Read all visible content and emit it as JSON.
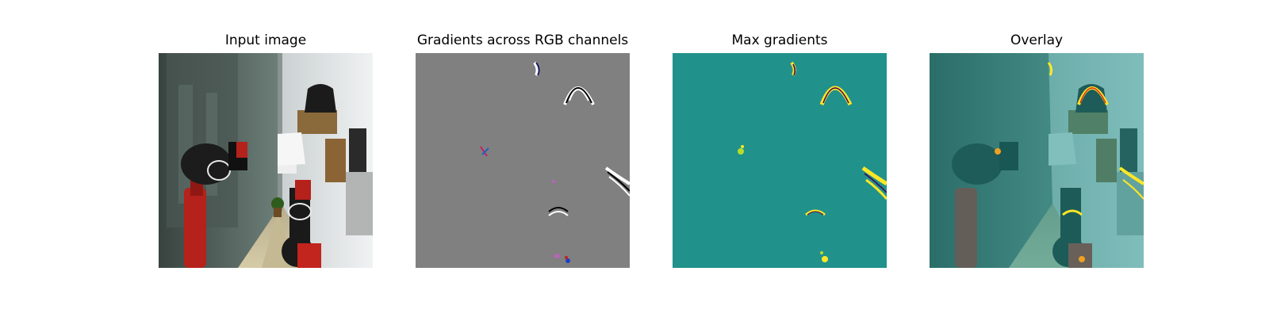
{
  "figure": {
    "panels": [
      {
        "title": "Input image"
      },
      {
        "title": "Gradients across RGB channels"
      },
      {
        "title": "Max gradients"
      },
      {
        "title": "Overlay"
      }
    ]
  },
  "colors": {
    "gradient_background": "#808080",
    "max_gradient_background": "#21918c",
    "highlight_yellow": "#fde725",
    "robot_red": "#b5211b"
  }
}
